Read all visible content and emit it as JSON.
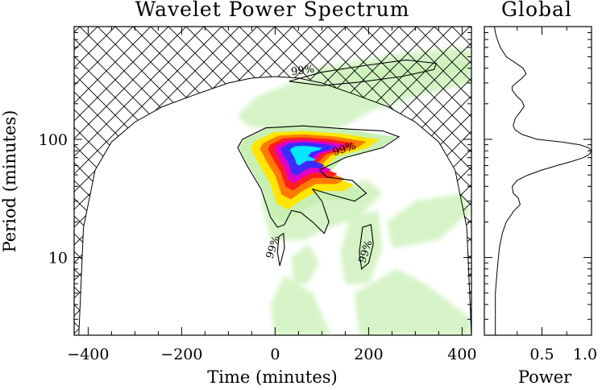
{
  "chart_data": [
    {
      "type": "heatmap",
      "title": "Wavelet Power Spectrum",
      "xlabel": "Time (minutes)",
      "ylabel": "Period (minutes)",
      "xlim": [
        -430,
        420
      ],
      "ylim": [
        2.2,
        900
      ],
      "y_scale": "log",
      "x_ticks": [
        -400,
        -200,
        0,
        200,
        400
      ],
      "x_tick_labels": [
        "−400",
        "−200",
        "0",
        "200",
        "400"
      ],
      "y_ticks": [
        10,
        100
      ],
      "y_tick_labels": [
        "10",
        "100"
      ],
      "colors": {
        "low": "#c8f0b4",
        "mid": "#ffe600",
        "orange": "#ff7a00",
        "red": "#ff1e1e",
        "magenta": "#e000c8",
        "blue": "#3d2aff",
        "peak": "#00e8ff"
      },
      "peak": {
        "time": 60,
        "period": 80
      },
      "significance_label": "99%",
      "significance_contours": [
        {
          "label": "99%",
          "points": [
            [
              -70,
              100
            ],
            [
              -80,
              85
            ],
            [
              -60,
              60
            ],
            [
              -30,
              38
            ],
            [
              -10,
              22
            ],
            [
              5,
              18
            ],
            [
              20,
              19
            ],
            [
              35,
              25
            ],
            [
              55,
              24
            ],
            [
              80,
              20
            ],
            [
              105,
              16
            ],
            [
              115,
              20
            ],
            [
              100,
              30
            ],
            [
              80,
              38
            ],
            [
              120,
              34
            ],
            [
              170,
              30
            ],
            [
              195,
              35
            ],
            [
              165,
              45
            ],
            [
              110,
              48
            ],
            [
              95,
              55
            ],
            [
              150,
              70
            ],
            [
              230,
              85
            ],
            [
              265,
              105
            ],
            [
              230,
              118
            ],
            [
              160,
              122
            ],
            [
              60,
              130
            ],
            [
              -20,
              125
            ],
            [
              -70,
              100
            ]
          ]
        },
        {
          "label": "99%",
          "points": [
            [
              10,
              8.5
            ],
            [
              5,
              11
            ],
            [
              8,
              15
            ],
            [
              18,
              16
            ],
            [
              20,
              12
            ],
            [
              10,
              8.5
            ]
          ]
        },
        {
          "label": "99%",
          "points": [
            [
              185,
              8
            ],
            [
              180,
              11
            ],
            [
              187,
              18
            ],
            [
              205,
              19
            ],
            [
              210,
              13
            ],
            [
              200,
              9
            ],
            [
              185,
              8
            ]
          ]
        },
        {
          "label": "99%",
          "points": [
            [
              30,
              310
            ],
            [
              100,
              370
            ],
            [
              190,
              420
            ],
            [
              280,
              470
            ],
            [
              345,
              440
            ],
            [
              340,
              390
            ],
            [
              270,
              340
            ],
            [
              180,
              305
            ],
            [
              100,
              285
            ],
            [
              30,
              310
            ]
          ]
        }
      ],
      "cone_of_influence": [
        [
          -420,
          2.2
        ],
        [
          -410,
          18
        ],
        [
          -385,
          55
        ],
        [
          -350,
          95
        ],
        [
          -300,
          140
        ],
        [
          -240,
          190
        ],
        [
          -170,
          240
        ],
        [
          -100,
          300
        ],
        [
          -50,
          330
        ],
        [
          0,
          340
        ],
        [
          50,
          330
        ],
        [
          100,
          300
        ],
        [
          170,
          240
        ],
        [
          240,
          190
        ],
        [
          300,
          140
        ],
        [
          350,
          95
        ],
        [
          385,
          55
        ],
        [
          410,
          18
        ],
        [
          420,
          2.2
        ]
      ]
    },
    {
      "type": "line",
      "title": "Global",
      "xlabel": "Power",
      "ylabel": "",
      "xlim": [
        0,
        1.0
      ],
      "ylim": [
        2.2,
        900
      ],
      "y_scale": "log",
      "x_ticks": [
        0.5,
        1.0
      ],
      "x_tick_labels": [
        "0.5",
        "1.0"
      ],
      "series": [
        {
          "period": [
            2.2,
            5,
            8,
            12,
            16,
            20,
            25,
            28,
            32,
            35,
            40,
            45,
            50,
            55,
            60,
            65,
            70,
            75,
            80,
            85,
            90,
            95,
            100,
            110,
            120,
            130,
            150,
            170,
            190,
            210,
            230,
            260,
            280,
            300,
            330,
            360,
            400,
            450,
            500,
            600,
            700,
            800,
            900
          ],
          "power": [
            0.03,
            0.03,
            0.05,
            0.07,
            0.1,
            0.14,
            0.22,
            0.28,
            0.26,
            0.21,
            0.2,
            0.25,
            0.36,
            0.5,
            0.65,
            0.8,
            0.92,
            0.98,
            1.0,
            0.97,
            0.88,
            0.7,
            0.45,
            0.3,
            0.23,
            0.21,
            0.23,
            0.28,
            0.32,
            0.3,
            0.25,
            0.2,
            0.2,
            0.24,
            0.3,
            0.34,
            0.31,
            0.22,
            0.14,
            0.08,
            0.05,
            0.03,
            0.02
          ]
        }
      ]
    }
  ]
}
